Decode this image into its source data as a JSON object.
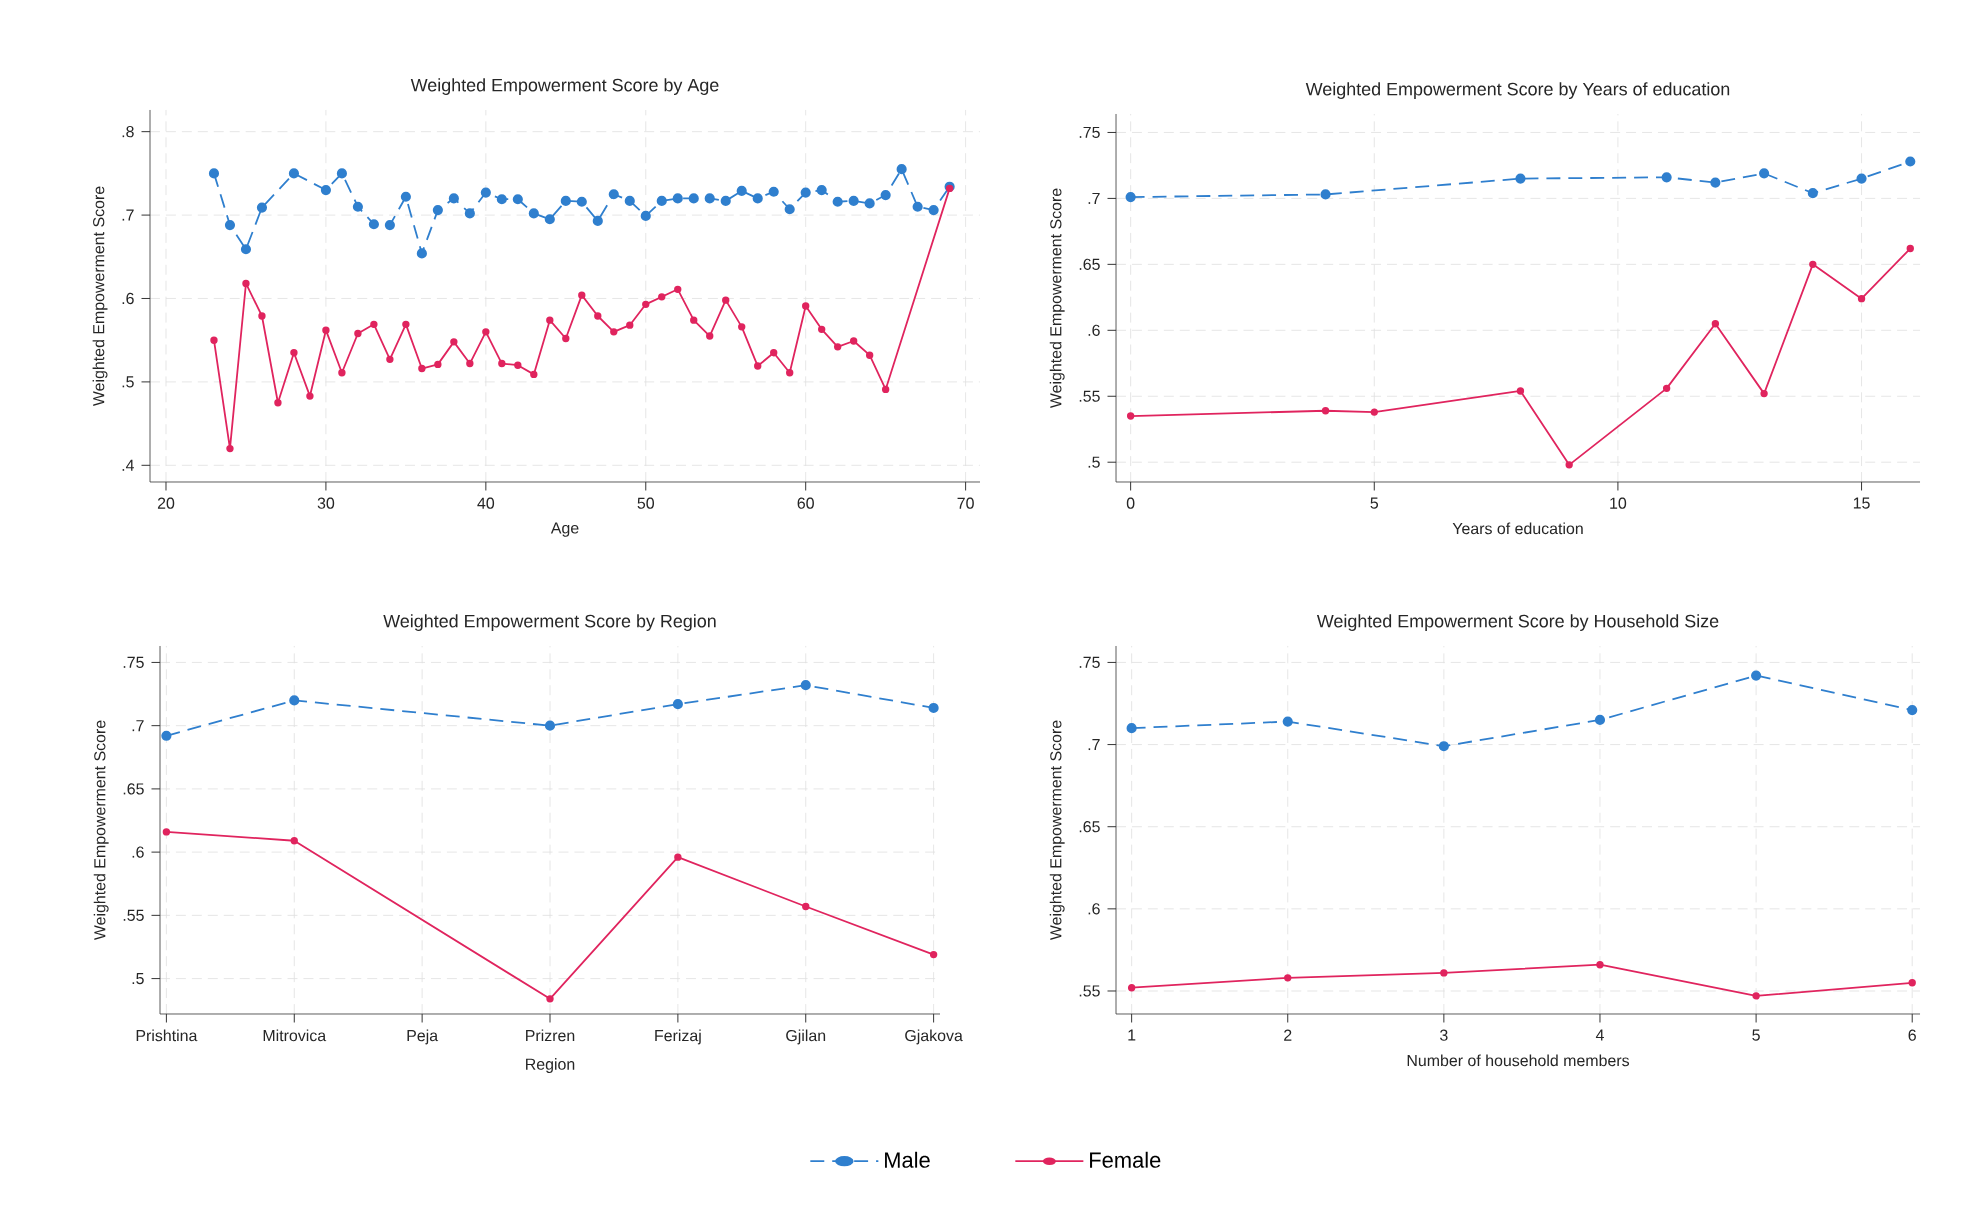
{
  "chart_data": [
    {
      "type": "line",
      "title": "Weighted Empowerment Score by Age",
      "xlabel": "Age",
      "ylabel": "Weighted Empowerment Score",
      "marker": "circle",
      "grid": true,
      "xlim": [
        19,
        70.9
      ],
      "xticks": [
        20,
        30,
        40,
        50,
        60,
        70
      ],
      "ylim": [
        0.38,
        0.826
      ],
      "yticks": [
        {
          "value": 0.4,
          "label": ".4"
        },
        {
          "value": 0.5,
          "label": ".5"
        },
        {
          "value": 0.6,
          "label": ".6"
        },
        {
          "value": 0.7,
          "label": ".7"
        },
        {
          "value": 0.8,
          "label": ".8"
        }
      ],
      "series": [
        {
          "color": "#2f7fce",
          "line_style": "dashed",
          "x": [
            23,
            24,
            25,
            26,
            28,
            30,
            31,
            32,
            33,
            34,
            35,
            36,
            37,
            38,
            39,
            40,
            41,
            42,
            43,
            44,
            45,
            46,
            47,
            48,
            49,
            50,
            51,
            52,
            53,
            54,
            55,
            56,
            57,
            58,
            59,
            60,
            61,
            62,
            63,
            64,
            65,
            66,
            67,
            68,
            69
          ],
          "values": [
            0.75,
            0.688,
            0.659,
            0.709,
            0.75,
            0.73,
            0.75,
            0.71,
            0.689,
            0.688,
            0.722,
            0.654,
            0.706,
            0.72,
            0.702,
            0.727,
            0.719,
            0.719,
            0.702,
            0.695,
            0.717,
            0.716,
            0.693,
            0.725,
            0.717,
            0.699,
            0.717,
            0.72,
            0.72,
            0.72,
            0.717,
            0.729,
            0.72,
            0.728,
            0.707,
            0.727,
            0.73,
            0.716,
            0.717,
            0.714,
            0.724,
            0.755,
            0.71,
            0.706,
            0.734
          ]
        },
        {
          "color": "#e0245e",
          "line_style": "solid",
          "x": [
            23,
            24,
            25,
            26,
            27,
            28,
            29,
            30,
            31,
            32,
            33,
            34,
            35,
            36,
            37,
            38,
            39,
            40,
            41,
            42,
            43,
            44,
            45,
            46,
            47,
            48,
            49,
            50,
            51,
            52,
            53,
            54,
            55,
            56,
            57,
            58,
            59,
            60,
            61,
            62,
            63,
            64,
            65,
            69
          ],
          "values": [
            0.55,
            0.42,
            0.618,
            0.579,
            0.475,
            0.535,
            0.483,
            0.562,
            0.511,
            0.558,
            0.569,
            0.527,
            0.569,
            0.516,
            0.521,
            0.548,
            0.522,
            0.56,
            0.522,
            0.52,
            0.509,
            0.574,
            0.552,
            0.604,
            0.579,
            0.56,
            0.568,
            0.593,
            0.602,
            0.611,
            0.574,
            0.555,
            0.598,
            0.566,
            0.519,
            0.535,
            0.511,
            0.591,
            0.563,
            0.542,
            0.549,
            0.532,
            0.491,
            0.732
          ]
        }
      ]
    },
    {
      "type": "line",
      "title": "Weighted Empowerment Score by Years of education",
      "xlabel": "Years of education",
      "ylabel": "Weighted Empowerment Score",
      "marker": "circle",
      "grid": true,
      "xlim": [
        -0.3,
        16.2
      ],
      "xticks": [
        0,
        5,
        10,
        15
      ],
      "ylim": [
        0.485,
        0.764
      ],
      "yticks": [
        {
          "value": 0.5,
          "label": ".5"
        },
        {
          "value": 0.55,
          "label": ".55"
        },
        {
          "value": 0.6,
          "label": ".6"
        },
        {
          "value": 0.65,
          "label": ".65"
        },
        {
          "value": 0.7,
          "label": ".7"
        },
        {
          "value": 0.75,
          "label": ".75"
        }
      ],
      "series": [
        {
          "color": "#2f7fce",
          "line_style": "dashed",
          "x": [
            0,
            4,
            8,
            11,
            12,
            13,
            14,
            15,
            16
          ],
          "values": [
            0.701,
            0.703,
            0.715,
            0.716,
            0.712,
            0.719,
            0.704,
            0.715,
            0.728
          ]
        },
        {
          "color": "#e0245e",
          "line_style": "solid",
          "x": [
            0,
            4,
            5,
            8,
            9,
            11,
            12,
            13,
            14,
            15,
            16
          ],
          "values": [
            0.535,
            0.539,
            0.538,
            0.554,
            0.498,
            0.556,
            0.605,
            0.552,
            0.65,
            0.624,
            0.662
          ]
        }
      ]
    },
    {
      "type": "line",
      "title": "Weighted Empowerment Score by Region",
      "xlabel": "Region",
      "ylabel": "Weighted Empowerment Score",
      "marker": "circle",
      "grid": true,
      "categories": [
        "Prishtina",
        "Mitrovica",
        "Peja",
        "Prizren",
        "Ferizaj",
        "Gjilan",
        "Gjakova"
      ],
      "ylim": [
        0.472,
        0.763
      ],
      "yticks": [
        {
          "value": 0.5,
          "label": ".5"
        },
        {
          "value": 0.55,
          "label": ".55"
        },
        {
          "value": 0.6,
          "label": ".6"
        },
        {
          "value": 0.65,
          "label": ".65"
        },
        {
          "value": 0.7,
          "label": ".7"
        },
        {
          "value": 0.75,
          "label": ".75"
        }
      ],
      "series": [
        {
          "color": "#2f7fce",
          "line_style": "dashed",
          "values": [
            0.692,
            0.72,
            null,
            0.7,
            0.717,
            0.732,
            0.714
          ]
        },
        {
          "color": "#e0245e",
          "line_style": "solid",
          "values": [
            0.616,
            0.609,
            null,
            0.484,
            0.596,
            0.557,
            0.519
          ]
        }
      ]
    },
    {
      "type": "line",
      "title": "Weighted Empowerment Score by Household Size",
      "xlabel": "Number of household members",
      "ylabel": "Weighted Empowerment Score",
      "marker": "circle",
      "grid": true,
      "legend": "bottom",
      "xlim": [
        0.9,
        6.05
      ],
      "xticks": [
        1,
        2,
        3,
        4,
        5,
        6
      ],
      "ylim": [
        0.536,
        0.76
      ],
      "yticks": [
        {
          "value": 0.55,
          "label": ".55"
        },
        {
          "value": 0.6,
          "label": ".6"
        },
        {
          "value": 0.65,
          "label": ".65"
        },
        {
          "value": 0.7,
          "label": ".7"
        },
        {
          "value": 0.75,
          "label": ".75"
        }
      ],
      "series": [
        {
          "name": "Male",
          "color": "#2f7fce",
          "line_style": "dashed",
          "x": [
            1,
            2,
            3,
            4,
            5,
            6
          ],
          "values": [
            0.71,
            0.714,
            0.699,
            0.715,
            0.742,
            0.721
          ]
        },
        {
          "name": "Female",
          "color": "#e0245e",
          "line_style": "solid",
          "x": [
            1,
            2,
            3,
            4,
            5,
            6
          ],
          "values": [
            0.552,
            0.558,
            0.561,
            0.566,
            0.547,
            0.555
          ]
        }
      ]
    }
  ]
}
